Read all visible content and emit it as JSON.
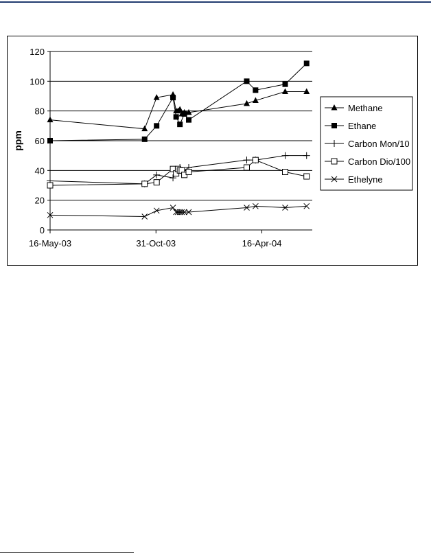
{
  "chart_data": {
    "type": "line",
    "ylabel": "ppm",
    "xlabel": "",
    "title": "",
    "ylim": [
      0,
      120
    ],
    "yticks": [
      0,
      20,
      40,
      60,
      80,
      100,
      120
    ],
    "xlim": [
      "2003-05-16",
      "2004-07-05"
    ],
    "xticks": [
      {
        "date": "2003-05-16",
        "label": "16-May-03"
      },
      {
        "date": "2003-10-31",
        "label": "31-Oct-03"
      },
      {
        "date": "2004-04-16",
        "label": "16-Apr-04"
      }
    ],
    "grid": "horizontal",
    "legend_position": "right",
    "colors": {
      "line": "#000000",
      "grid": "#000000",
      "frame": "#000000"
    },
    "series": [
      {
        "name": "Methane",
        "marker": "triangle",
        "x": [
          "2003-05-16",
          "2003-10-13",
          "2003-11-01",
          "2003-11-27",
          "2003-12-02",
          "2003-12-05",
          "2003-12-08",
          "2003-12-11",
          "2003-12-15",
          "2003-12-22",
          "2004-03-23",
          "2004-04-06",
          "2004-05-23",
          "2004-06-26"
        ],
        "y": [
          74,
          68,
          89,
          91,
          80,
          80,
          81,
          78,
          79,
          79,
          85,
          87,
          93,
          93
        ]
      },
      {
        "name": "Ethane",
        "marker": "square-filled",
        "x": [
          "2003-05-16",
          "2003-10-13",
          "2003-11-01",
          "2003-11-27",
          "2003-12-02",
          "2003-12-08",
          "2003-12-15",
          "2003-12-22",
          "2004-03-23",
          "2004-04-06",
          "2004-05-23",
          "2004-06-26"
        ],
        "y": [
          60,
          61,
          70,
          89,
          76,
          71,
          78,
          74,
          100,
          94,
          98,
          112
        ]
      },
      {
        "name": "Carbon Mon/10",
        "marker": "plus",
        "x": [
          "2003-05-16",
          "2003-10-13",
          "2003-11-01",
          "2003-11-27",
          "2003-12-02",
          "2003-12-08",
          "2003-12-15",
          "2003-12-22",
          "2004-03-23",
          "2004-04-06",
          "2004-05-23",
          "2004-06-26"
        ],
        "y": [
          33,
          31,
          37,
          35,
          39,
          42,
          40,
          42,
          47,
          47,
          50,
          50
        ]
      },
      {
        "name": "Carbon Dio/100",
        "marker": "square-open",
        "x": [
          "2003-05-16",
          "2003-10-13",
          "2003-11-01",
          "2003-11-27",
          "2003-12-02",
          "2003-12-05",
          "2003-12-08",
          "2003-12-11",
          "2003-12-15",
          "2003-12-22",
          "2004-03-23",
          "2004-04-06",
          "2004-05-23",
          "2004-06-26"
        ],
        "y": [
          30,
          31,
          32,
          41,
          38,
          41,
          40,
          40,
          37,
          39,
          42,
          47,
          39,
          36
        ]
      },
      {
        "name": "Ethelyne",
        "marker": "x",
        "x": [
          "2003-05-16",
          "2003-10-13",
          "2003-11-01",
          "2003-11-27",
          "2003-12-02",
          "2003-12-05",
          "2003-12-08",
          "2003-12-11",
          "2003-12-15",
          "2003-12-22",
          "2004-03-23",
          "2004-04-06",
          "2004-05-23",
          "2004-06-26"
        ],
        "y": [
          10,
          9,
          13,
          15,
          12,
          12,
          12,
          12,
          12,
          12,
          15,
          16,
          15,
          16
        ]
      }
    ]
  }
}
